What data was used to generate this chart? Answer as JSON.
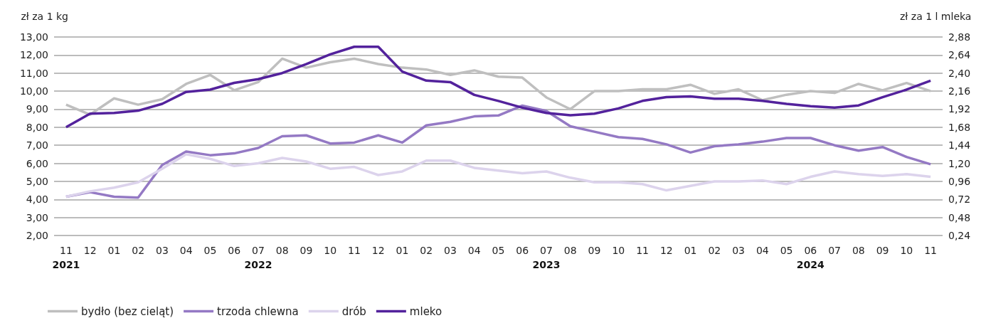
{
  "chart_data": {
    "type": "line",
    "ylabel": "zł za 1 kg",
    "y2label": "zł za 1 l mleka",
    "categories": [
      "11\n2021",
      "12",
      "01",
      "02",
      "03",
      "04",
      "05",
      "06",
      "07\n2022",
      "08",
      "09",
      "10",
      "11",
      "12",
      "01",
      "02",
      "03",
      "04",
      "05",
      "06",
      "07\n2023",
      "08",
      "09",
      "10",
      "11",
      "12",
      "01",
      "02",
      "03",
      "04",
      "05",
      "06\n2024",
      "07",
      "08",
      "09",
      "10",
      "11"
    ],
    "series": [
      {
        "name": "bydło (bez cieląt)",
        "color": "#bfbfbf",
        "values": [
          9.25,
          8.7,
          9.6,
          9.25,
          9.55,
          10.4,
          10.9,
          10.05,
          10.5,
          11.8,
          11.3,
          11.6,
          11.8,
          11.5,
          11.3,
          11.2,
          10.9,
          11.15,
          10.8,
          10.75,
          9.65,
          9.0,
          10.0,
          10.0,
          10.1,
          10.1,
          10.35,
          9.85,
          10.1,
          9.5,
          9.8,
          10.0,
          9.9,
          10.4,
          10.05,
          10.45,
          10.0
        ]
      },
      {
        "name": "trzoda chlewna",
        "color": "#9479c4",
        "values": [
          4.15,
          4.4,
          4.15,
          4.1,
          5.9,
          6.65,
          6.45,
          6.55,
          6.85,
          7.5,
          7.55,
          7.1,
          7.15,
          7.55,
          7.15,
          8.1,
          8.3,
          8.6,
          8.65,
          9.2,
          8.9,
          8.05,
          7.75,
          7.45,
          7.35,
          7.05,
          6.6,
          6.95,
          7.05,
          7.2,
          7.4,
          7.4,
          7.0,
          6.7,
          6.9,
          6.35,
          5.95
        ]
      },
      {
        "name": "drób",
        "color": "#dcd3ec",
        "values": [
          4.15,
          4.45,
          4.65,
          4.95,
          5.7,
          6.5,
          6.25,
          5.85,
          6.0,
          6.3,
          6.1,
          5.7,
          5.8,
          5.35,
          5.55,
          6.15,
          6.15,
          5.75,
          5.6,
          5.45,
          5.55,
          5.2,
          4.95,
          4.95,
          4.85,
          4.5,
          4.75,
          5.0,
          5.0,
          5.05,
          4.85,
          5.25,
          5.55,
          5.4,
          5.3,
          5.4,
          5.25
        ]
      },
      {
        "name": "mleko",
        "color": "#53229c",
        "axis": "y2",
        "values": [
          1.68,
          1.86,
          1.87,
          1.9,
          1.99,
          2.15,
          2.18,
          2.27,
          2.32,
          2.4,
          2.52,
          2.65,
          2.75,
          2.75,
          2.42,
          2.3,
          2.28,
          2.11,
          2.03,
          1.94,
          1.87,
          1.84,
          1.86,
          1.93,
          2.03,
          2.08,
          2.09,
          2.06,
          2.06,
          2.03,
          1.99,
          1.96,
          1.94,
          1.97,
          2.08,
          2.18,
          2.3
        ]
      }
    ],
    "ylim": [
      2,
      13
    ],
    "yticks": [
      {
        "value": 2,
        "label": "2,00"
      },
      {
        "value": 3,
        "label": "3,00"
      },
      {
        "value": 4,
        "label": "4,00"
      },
      {
        "value": 5,
        "label": "5,00"
      },
      {
        "value": 6,
        "label": "6,00"
      },
      {
        "value": 7,
        "label": "7,00"
      },
      {
        "value": 8,
        "label": "8,00"
      },
      {
        "value": 9,
        "label": "9,00"
      },
      {
        "value": 10,
        "label": "10,00"
      },
      {
        "value": 11,
        "label": "11,00"
      },
      {
        "value": 12,
        "label": "12,00"
      },
      {
        "value": 13,
        "label": "13,00"
      }
    ],
    "y2lim": [
      0.24,
      2.88
    ],
    "y2ticks": [
      {
        "value": 0.24,
        "label": "0,24"
      },
      {
        "value": 0.48,
        "label": "0,48"
      },
      {
        "value": 0.72,
        "label": "0,72"
      },
      {
        "value": 0.96,
        "label": "0,96"
      },
      {
        "value": 1.2,
        "label": "1,20"
      },
      {
        "value": 1.44,
        "label": "1,44"
      },
      {
        "value": 1.68,
        "label": "1,68"
      },
      {
        "value": 1.92,
        "label": "1,92"
      },
      {
        "value": 2.16,
        "label": "2,16"
      },
      {
        "value": 2.4,
        "label": "2,40"
      },
      {
        "value": 2.64,
        "label": "2,64"
      },
      {
        "value": 2.88,
        "label": "2,88"
      }
    ],
    "grid": "y",
    "legend": "bottom left",
    "marker": "none",
    "line_style": "solid"
  }
}
